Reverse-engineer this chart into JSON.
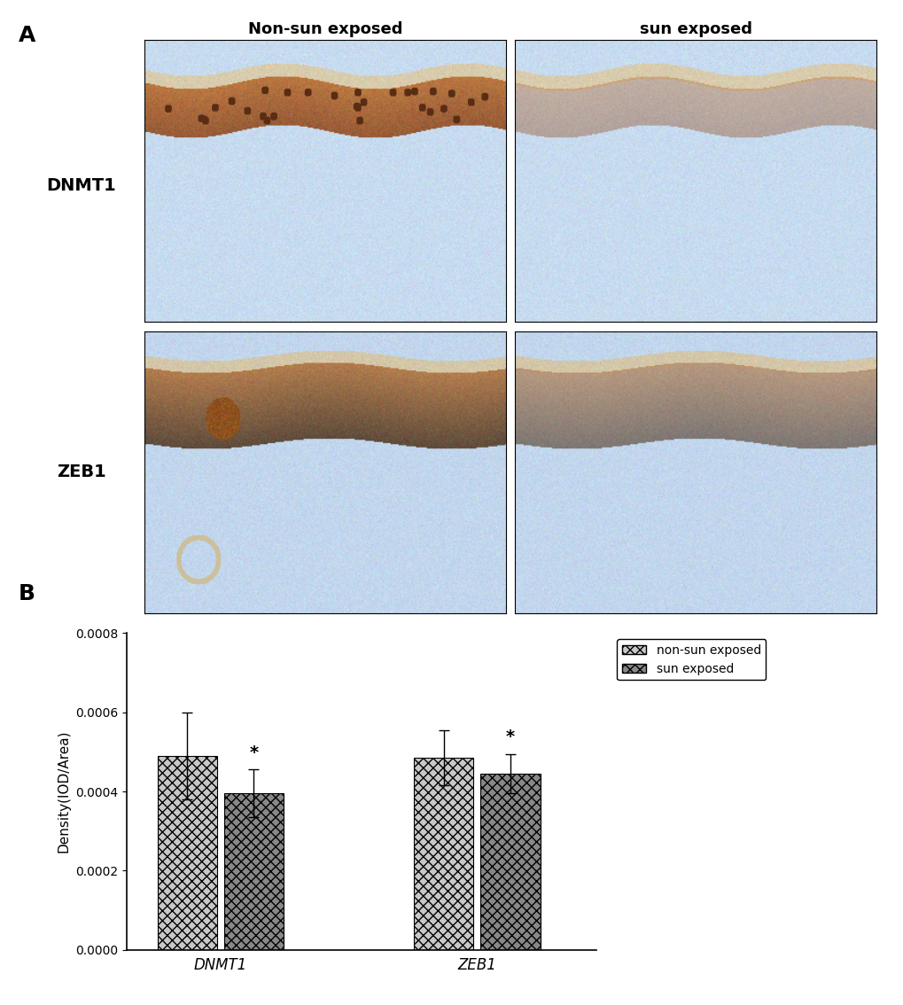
{
  "panel_A_label": "A",
  "panel_B_label": "B",
  "col_headers": [
    "Non-sun exposed",
    "sun exposed"
  ],
  "row_labels": [
    "DNMT1",
    "ZEB1"
  ],
  "bar_groups": [
    "DNMT1",
    "ZEB1"
  ],
  "bar_values": [
    [
      0.00049,
      0.000395
    ],
    [
      0.000485,
      0.000445
    ]
  ],
  "bar_errors": [
    [
      0.00011,
      6e-05
    ],
    [
      7e-05,
      5e-05
    ]
  ],
  "legend_labels": [
    "non-sun exposed",
    "sun exposed"
  ],
  "ylabel": "Density(IOD/Area)",
  "ylim": [
    0,
    0.0008
  ],
  "yticks": [
    0.0,
    0.0002,
    0.0004,
    0.0006,
    0.0008
  ],
  "background_color": "#ffffff",
  "axis_fontsize": 11,
  "tick_fontsize": 10,
  "hatch_nonsun": "xxx",
  "hatch_sun": "XXX",
  "bar_edge_color": "#000000",
  "bar_width": 0.35,
  "nonsun_facecolor": "#c8c8c8",
  "sun_facecolor": "#888888"
}
